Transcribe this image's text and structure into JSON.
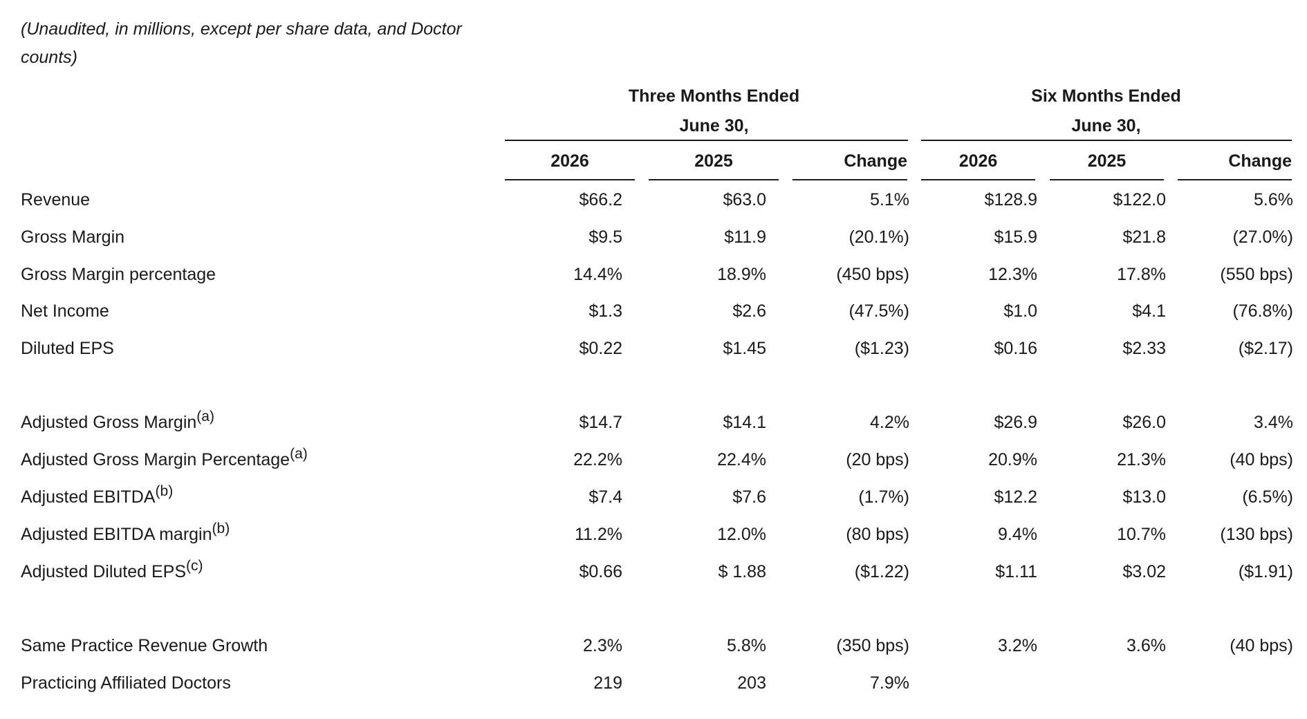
{
  "note": "(Unaudited, in millions, except per share data, and Doctor counts)",
  "groups": [
    {
      "line1": "Three Months Ended",
      "line2": "June 30,"
    },
    {
      "line1": "Six Months Ended",
      "line2": "June 30,"
    }
  ],
  "columns": [
    "2026",
    "2025",
    "Change",
    "2026",
    "2025",
    "Change"
  ],
  "rows": [
    {
      "label": "Revenue",
      "sup": "",
      "values": [
        "$66.2",
        "$63.0",
        "5.1%",
        "$128.9",
        "$122.0",
        "5.6%"
      ]
    },
    {
      "label": "Gross Margin",
      "sup": "",
      "values": [
        "$9.5",
        "$11.9",
        "(20.1%)",
        "$15.9",
        "$21.8",
        "(27.0%)"
      ]
    },
    {
      "label": "Gross Margin percentage",
      "sup": "",
      "values": [
        "14.4%",
        "18.9%",
        "(450 bps)",
        "12.3%",
        "17.8%",
        "(550 bps)"
      ]
    },
    {
      "label": "Net Income",
      "sup": "",
      "values": [
        "$1.3",
        "$2.6",
        "(47.5%)",
        "$1.0",
        "$4.1",
        "(76.8%)"
      ]
    },
    {
      "label": "Diluted EPS",
      "sup": "",
      "values": [
        "$0.22",
        "$1.45",
        "($1.23)",
        "$0.16",
        "$2.33",
        "($2.17)"
      ]
    },
    {
      "label": "Adjusted Gross Margin",
      "sup": "(a)",
      "values": [
        "$14.7",
        "$14.1",
        "4.2%",
        "$26.9",
        "$26.0",
        "3.4%"
      ]
    },
    {
      "label": "Adjusted Gross Margin Percentage",
      "sup": "(a)",
      "values": [
        "22.2%",
        "22.4%",
        "(20 bps)",
        "20.9%",
        "21.3%",
        "(40 bps)"
      ]
    },
    {
      "label": "Adjusted EBITDA",
      "sup": "(b)",
      "values": [
        "$7.4",
        "$7.6",
        "(1.7%)",
        "$12.2",
        "$13.0",
        "(6.5%)"
      ]
    },
    {
      "label": "Adjusted EBITDA margin",
      "sup": "(b)",
      "values": [
        "11.2%",
        "12.0%",
        "(80 bps)",
        "9.4%",
        "10.7%",
        "(130 bps)"
      ]
    },
    {
      "label": "Adjusted Diluted EPS",
      "sup": "(c)",
      "values": [
        "$0.66",
        "$ 1.88",
        "($1.22)",
        "$1.11",
        "$3.02",
        "($1.91)"
      ]
    },
    {
      "label": "Same Practice Revenue Growth",
      "sup": "",
      "values": [
        "2.3%",
        "5.8%",
        "(350 bps)",
        "3.2%",
        "3.6%",
        "(40 bps)"
      ]
    },
    {
      "label": "Practicing Affiliated Doctors",
      "sup": "",
      "values": [
        "219",
        "203",
        "7.9%",
        "",
        "",
        ""
      ]
    }
  ]
}
